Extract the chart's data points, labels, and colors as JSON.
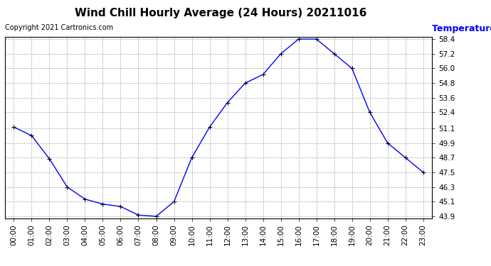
{
  "title": "Wind Chill Hourly Average (24 Hours) 20211016",
  "copyright": "Copyright 2021 Cartronics.com",
  "ylabel": "Temperature (°F)",
  "ylabel_color": "blue",
  "hours": [
    "00:00",
    "01:00",
    "02:00",
    "03:00",
    "04:00",
    "05:00",
    "06:00",
    "07:00",
    "08:00",
    "09:00",
    "10:00",
    "11:00",
    "12:00",
    "13:00",
    "14:00",
    "15:00",
    "16:00",
    "17:00",
    "18:00",
    "19:00",
    "20:00",
    "21:00",
    "22:00",
    "23:00"
  ],
  "values": [
    51.2,
    50.5,
    48.6,
    46.3,
    45.3,
    44.9,
    44.7,
    44.0,
    43.9,
    45.1,
    48.7,
    51.2,
    53.2,
    54.8,
    55.5,
    57.2,
    58.4,
    58.4,
    57.2,
    56.0,
    52.4,
    49.9,
    48.7,
    47.5
  ],
  "line_color": "blue",
  "marker": "+",
  "marker_color": "black",
  "marker_size": 5,
  "background_color": "#ffffff",
  "grid_color": "#aaaaaa",
  "ylim_min": 43.9,
  "ylim_max": 58.4,
  "yticks": [
    43.9,
    45.1,
    46.3,
    47.5,
    48.7,
    49.9,
    51.1,
    52.4,
    53.6,
    54.8,
    56.0,
    57.2,
    58.4
  ],
  "title_fontsize": 11,
  "copyright_fontsize": 7,
  "ylabel_fontsize": 9,
  "tick_fontsize": 7.5
}
